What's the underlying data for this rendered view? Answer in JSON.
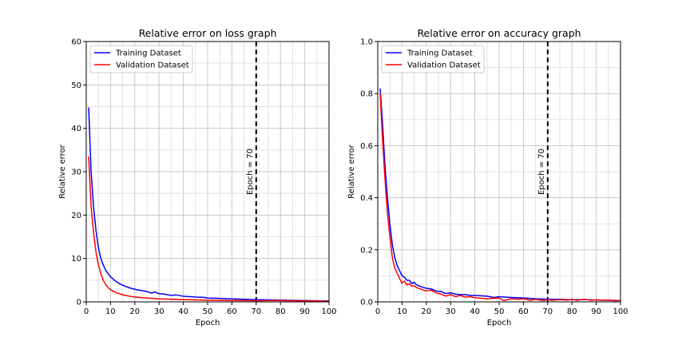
{
  "chart_data": [
    {
      "type": "line",
      "title": "Relative error on loss graph",
      "xlabel": "Epoch",
      "ylabel": "Relative error",
      "xlim": [
        0,
        100
      ],
      "ylim": [
        0,
        60
      ],
      "x_ticks": [
        0,
        10,
        20,
        30,
        40,
        50,
        60,
        70,
        80,
        90,
        100
      ],
      "y_ticks": [
        0,
        10,
        20,
        30,
        40,
        50,
        60
      ],
      "x_tick_labels": [
        "0",
        "10",
        "20",
        "30",
        "40",
        "50",
        "60",
        "70",
        "80",
        "90",
        "100"
      ],
      "y_tick_labels": [
        "0",
        "10",
        "20",
        "30",
        "40",
        "50",
        "60"
      ],
      "grid": true,
      "legend": "top-left",
      "vline": {
        "x": 70,
        "label": "Epoch = 70",
        "style": "dashed",
        "color": "#000000"
      },
      "series": [
        {
          "name": "Training Dataset",
          "color": "#0000ff",
          "points": [
            [
              1,
              44.8
            ],
            [
              2,
              30
            ],
            [
              3,
              22
            ],
            [
              4,
              16.5
            ],
            [
              5,
              12.5
            ],
            [
              6,
              10
            ],
            [
              7,
              8.5
            ],
            [
              8,
              7.3
            ],
            [
              9,
              6.5
            ],
            [
              10,
              5.8
            ],
            [
              12,
              4.8
            ],
            [
              14,
              4.1
            ],
            [
              16,
              3.6
            ],
            [
              18,
              3.2
            ],
            [
              20,
              2.9
            ],
            [
              22,
              2.7
            ],
            [
              25,
              2.4
            ],
            [
              27,
              2.0
            ],
            [
              28,
              2.3
            ],
            [
              30,
              1.9
            ],
            [
              32,
              1.8
            ],
            [
              35,
              1.5
            ],
            [
              37,
              1.6
            ],
            [
              40,
              1.3
            ],
            [
              42,
              1.25
            ],
            [
              45,
              1.1
            ],
            [
              48,
              1.05
            ],
            [
              50,
              0.9
            ],
            [
              55,
              0.8
            ],
            [
              60,
              0.7
            ],
            [
              65,
              0.6
            ],
            [
              70,
              0.5
            ],
            [
              75,
              0.45
            ],
            [
              80,
              0.4
            ],
            [
              85,
              0.35
            ],
            [
              90,
              0.3
            ],
            [
              95,
              0.25
            ],
            [
              100,
              0.2
            ]
          ]
        },
        {
          "name": "Validation Dataset",
          "color": "#ff0000",
          "points": [
            [
              1,
              33.5
            ],
            [
              2,
              22
            ],
            [
              3,
              16
            ],
            [
              4,
              11.5
            ],
            [
              5,
              8.5
            ],
            [
              6,
              6.5
            ],
            [
              7,
              5
            ],
            [
              8,
              4
            ],
            [
              9,
              3.3
            ],
            [
              10,
              2.8
            ],
            [
              12,
              2.2
            ],
            [
              14,
              1.8
            ],
            [
              16,
              1.5
            ],
            [
              18,
              1.3
            ],
            [
              20,
              1.1
            ],
            [
              25,
              0.9
            ],
            [
              30,
              0.7
            ],
            [
              35,
              0.6
            ],
            [
              40,
              0.5
            ],
            [
              45,
              0.45
            ],
            [
              50,
              0.4
            ],
            [
              55,
              0.35
            ],
            [
              60,
              0.3
            ],
            [
              65,
              0.3
            ],
            [
              70,
              0.25
            ],
            [
              75,
              0.3
            ],
            [
              80,
              0.3
            ],
            [
              82,
              0.25
            ],
            [
              85,
              0.25
            ],
            [
              90,
              0.2
            ],
            [
              95,
              0.2
            ],
            [
              100,
              0.15
            ]
          ]
        }
      ]
    },
    {
      "type": "line",
      "title": "Relative error on accuracy graph",
      "xlabel": "Epoch",
      "ylabel": "Relative error",
      "xlim": [
        0,
        100
      ],
      "ylim": [
        0,
        1.0
      ],
      "x_ticks": [
        0,
        10,
        20,
        30,
        40,
        50,
        60,
        70,
        80,
        90,
        100
      ],
      "y_ticks": [
        0,
        0.2,
        0.4,
        0.6,
        0.8,
        1.0
      ],
      "x_tick_labels": [
        "0",
        "10",
        "20",
        "30",
        "40",
        "50",
        "60",
        "70",
        "80",
        "90",
        "100"
      ],
      "y_tick_labels": [
        "0.0",
        "0.2",
        "0.4",
        "0.6",
        "0.8",
        "1.0"
      ],
      "grid": true,
      "legend": "top-left",
      "vline": {
        "x": 70,
        "label": "Epoch = 70",
        "style": "dashed",
        "color": "#000000"
      },
      "series": [
        {
          "name": "Training Dataset",
          "color": "#0000ff",
          "points": [
            [
              1,
              0.82
            ],
            [
              2,
              0.68
            ],
            [
              3,
              0.52
            ],
            [
              4,
              0.4
            ],
            [
              5,
              0.3
            ],
            [
              6,
              0.22
            ],
            [
              7,
              0.17
            ],
            [
              8,
              0.14
            ],
            [
              9,
              0.12
            ],
            [
              10,
              0.1
            ],
            [
              11,
              0.095
            ],
            [
              12,
              0.083
            ],
            [
              13,
              0.083
            ],
            [
              14,
              0.07
            ],
            [
              15,
              0.075
            ],
            [
              16,
              0.065
            ],
            [
              18,
              0.058
            ],
            [
              20,
              0.052
            ],
            [
              22,
              0.05
            ],
            [
              24,
              0.042
            ],
            [
              26,
              0.04
            ],
            [
              28,
              0.032
            ],
            [
              30,
              0.035
            ],
            [
              32,
              0.03
            ],
            [
              34,
              0.028
            ],
            [
              36,
              0.028
            ],
            [
              38,
              0.025
            ],
            [
              40,
              0.025
            ],
            [
              45,
              0.022
            ],
            [
              48,
              0.017
            ],
            [
              50,
              0.02
            ],
            [
              55,
              0.017
            ],
            [
              60,
              0.015
            ],
            [
              65,
              0.012
            ],
            [
              70,
              0.01
            ],
            [
              75,
              0.01
            ],
            [
              80,
              0.008
            ],
            [
              85,
              0.009
            ],
            [
              90,
              0.007
            ],
            [
              95,
              0.006
            ],
            [
              100,
              0.005
            ]
          ]
        },
        {
          "name": "Validation Dataset",
          "color": "#ff0000",
          "points": [
            [
              1,
              0.8
            ],
            [
              2,
              0.62
            ],
            [
              3,
              0.47
            ],
            [
              4,
              0.34
            ],
            [
              5,
              0.25
            ],
            [
              6,
              0.17
            ],
            [
              7,
              0.13
            ],
            [
              8,
              0.11
            ],
            [
              9,
              0.09
            ],
            [
              10,
              0.072
            ],
            [
              11,
              0.08
            ],
            [
              12,
              0.065
            ],
            [
              13,
              0.07
            ],
            [
              14,
              0.06
            ],
            [
              15,
              0.062
            ],
            [
              16,
              0.055
            ],
            [
              18,
              0.048
            ],
            [
              20,
              0.042
            ],
            [
              22,
              0.045
            ],
            [
              24,
              0.035
            ],
            [
              26,
              0.03
            ],
            [
              28,
              0.022
            ],
            [
              30,
              0.028
            ],
            [
              32,
              0.02
            ],
            [
              34,
              0.025
            ],
            [
              36,
              0.018
            ],
            [
              38,
              0.02
            ],
            [
              40,
              0.016
            ],
            [
              45,
              0.012
            ],
            [
              50,
              0.015
            ],
            [
              52,
              0.005
            ],
            [
              55,
              0.012
            ],
            [
              58,
              0.01
            ],
            [
              60,
              0.012
            ],
            [
              63,
              0.006
            ],
            [
              65,
              0.01
            ],
            [
              68,
              0.005
            ],
            [
              70,
              0.008
            ],
            [
              72,
              0.006
            ],
            [
              75,
              0.009
            ],
            [
              78,
              0.007
            ],
            [
              80,
              0.01
            ],
            [
              82,
              0.006
            ],
            [
              85,
              0.01
            ],
            [
              88,
              0.006
            ],
            [
              90,
              0.008
            ],
            [
              93,
              0.006
            ],
            [
              95,
              0.007
            ],
            [
              98,
              0.004
            ],
            [
              100,
              0.006
            ]
          ]
        }
      ]
    }
  ]
}
